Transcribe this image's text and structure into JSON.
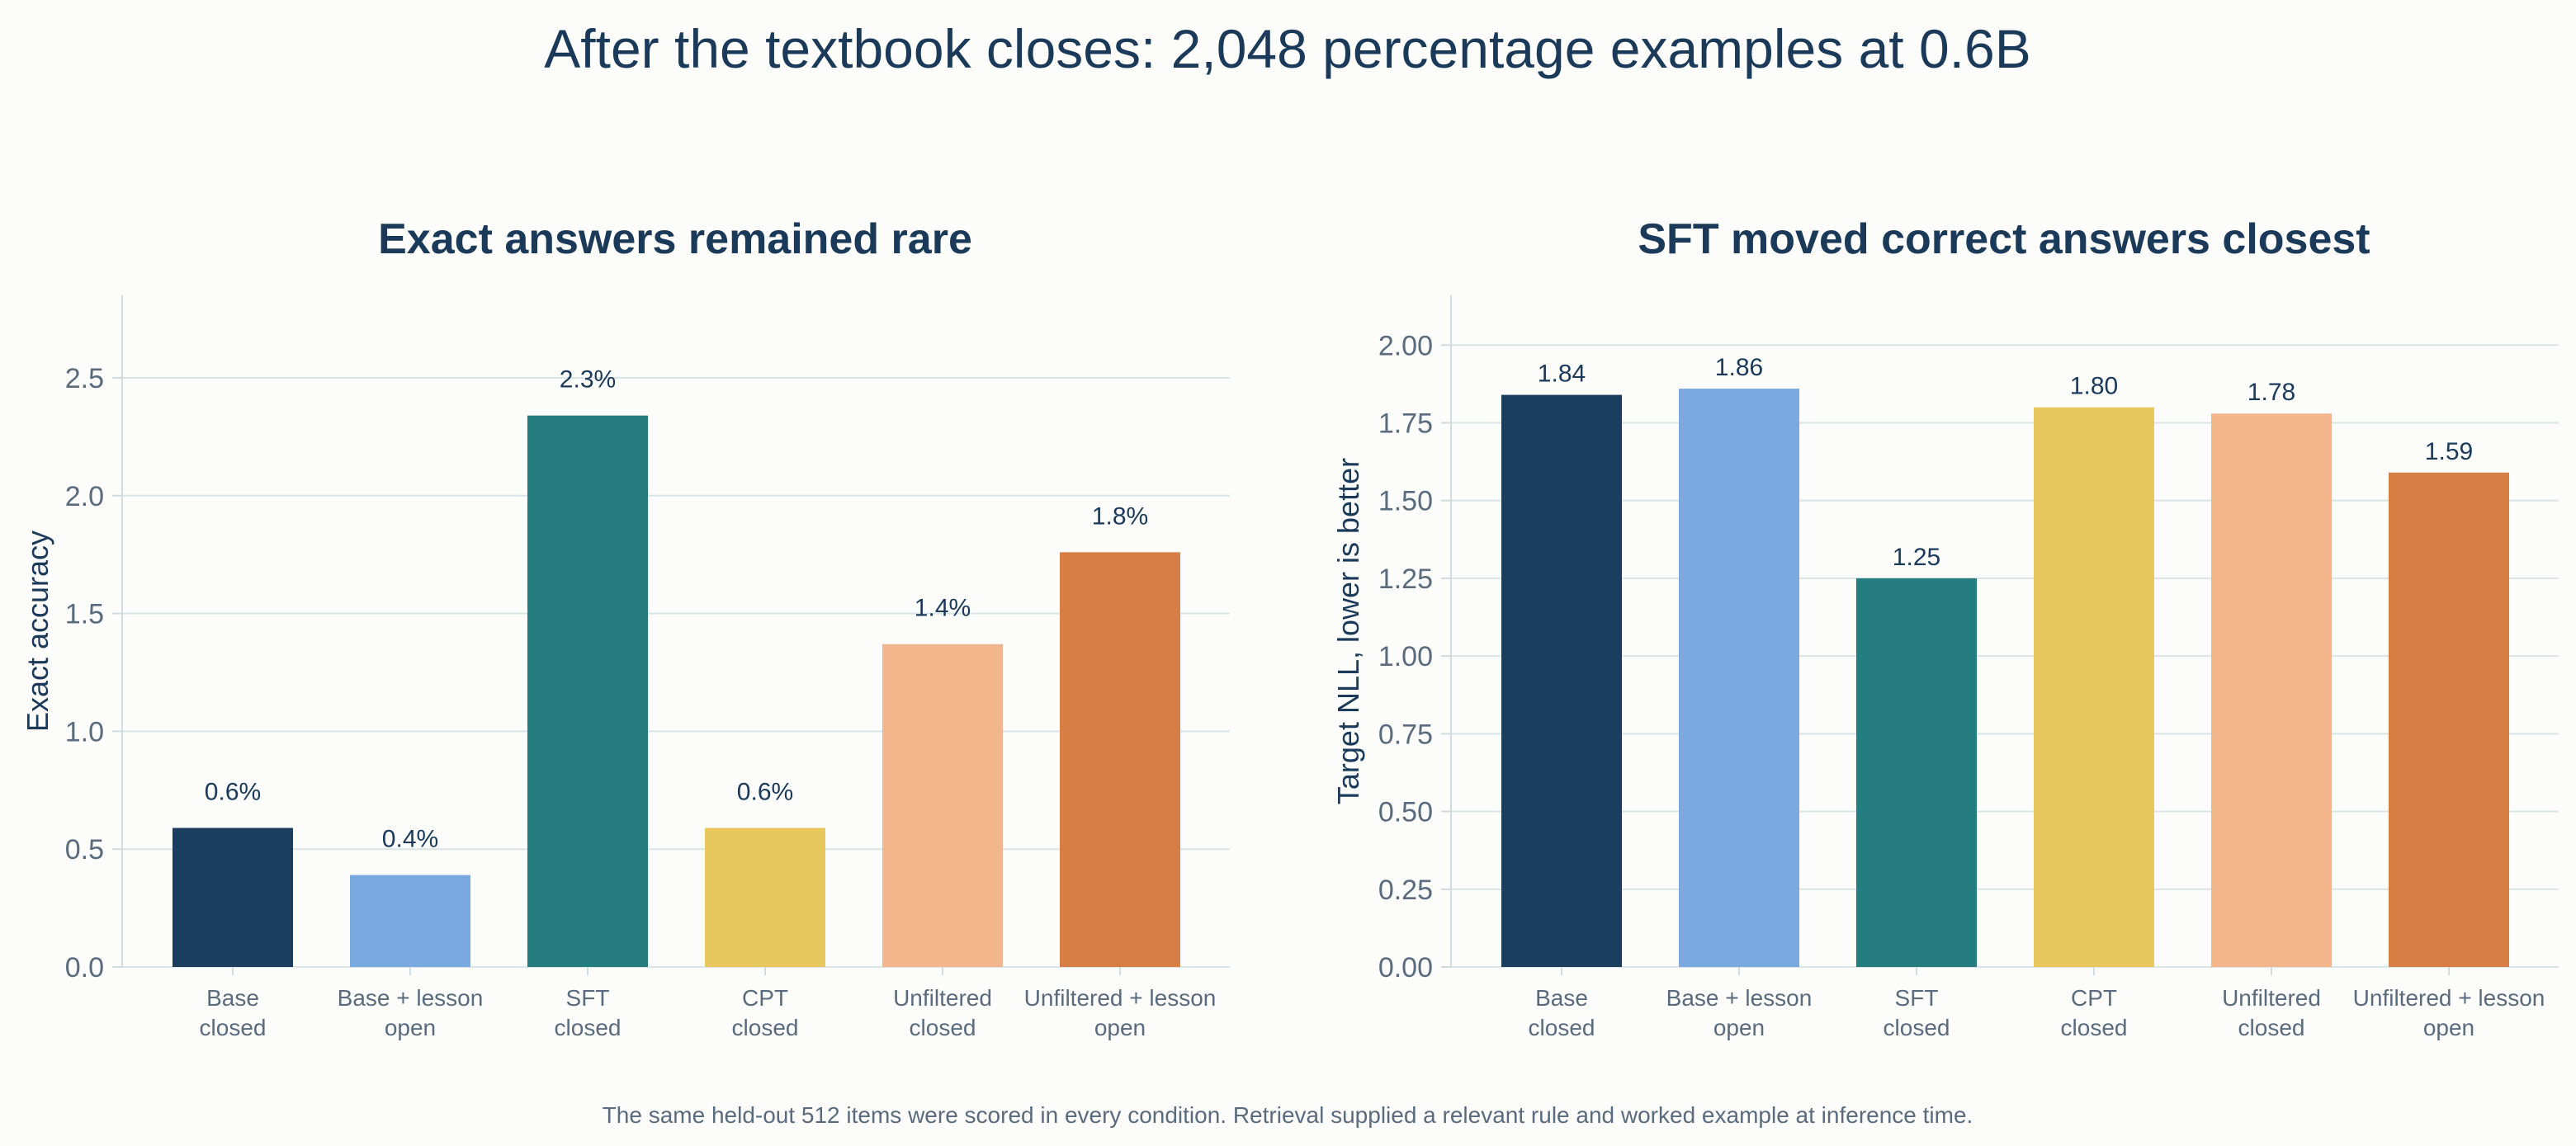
{
  "figure": {
    "suptitle": "After the textbook closes: 2,048 percentage examples at 0.6B",
    "caption": "The same held-out 512 items were scored in every condition. Retrieval supplied a relevant rule and worked example at inference time."
  },
  "colors": [
    "#1b3d5e",
    "#7aa9df",
    "#267d7f",
    "#e8c85c",
    "#f3b58b",
    "#d77e45"
  ],
  "chart_data": [
    {
      "type": "bar",
      "title": "Exact answers remained rare",
      "ylabel": "Exact accuracy",
      "xlabel": "",
      "categories": [
        [
          "Base",
          "closed"
        ],
        [
          "Base + lesson",
          "open"
        ],
        [
          "SFT",
          "closed"
        ],
        [
          "CPT",
          "closed"
        ],
        [
          "Unfiltered",
          "closed"
        ],
        [
          "Unfiltered + lesson",
          "open"
        ]
      ],
      "values": [
        0.59,
        0.39,
        2.34,
        0.59,
        1.37,
        1.76
      ],
      "data_labels": [
        "0.6%",
        "0.4%",
        "2.3%",
        "0.6%",
        "1.4%",
        "1.8%"
      ],
      "ylim": [
        0,
        2.85
      ],
      "yticks": [
        0.0,
        0.5,
        1.0,
        1.5,
        2.0,
        2.5
      ],
      "ytick_labels": [
        "0.0",
        "0.5",
        "1.0",
        "1.5",
        "2.0",
        "2.5"
      ],
      "grid": "horizontal"
    },
    {
      "type": "bar",
      "title": "SFT moved correct answers closest",
      "ylabel": "Target NLL, lower is better",
      "xlabel": "",
      "categories": [
        [
          "Base",
          "closed"
        ],
        [
          "Base + lesson",
          "open"
        ],
        [
          "SFT",
          "closed"
        ],
        [
          "CPT",
          "closed"
        ],
        [
          "Unfiltered",
          "closed"
        ],
        [
          "Unfiltered + lesson",
          "open"
        ]
      ],
      "values": [
        1.84,
        1.86,
        1.25,
        1.8,
        1.78,
        1.59
      ],
      "data_labels": [
        "1.84",
        "1.86",
        "1.25",
        "1.80",
        "1.78",
        "1.59"
      ],
      "ylim": [
        0,
        2.16
      ],
      "yticks": [
        0.0,
        0.25,
        0.5,
        0.75,
        1.0,
        1.25,
        1.5,
        1.75,
        2.0
      ],
      "ytick_labels": [
        "0.00",
        "0.25",
        "0.50",
        "0.75",
        "1.00",
        "1.25",
        "1.50",
        "1.75",
        "2.00"
      ],
      "grid": "horizontal"
    }
  ]
}
